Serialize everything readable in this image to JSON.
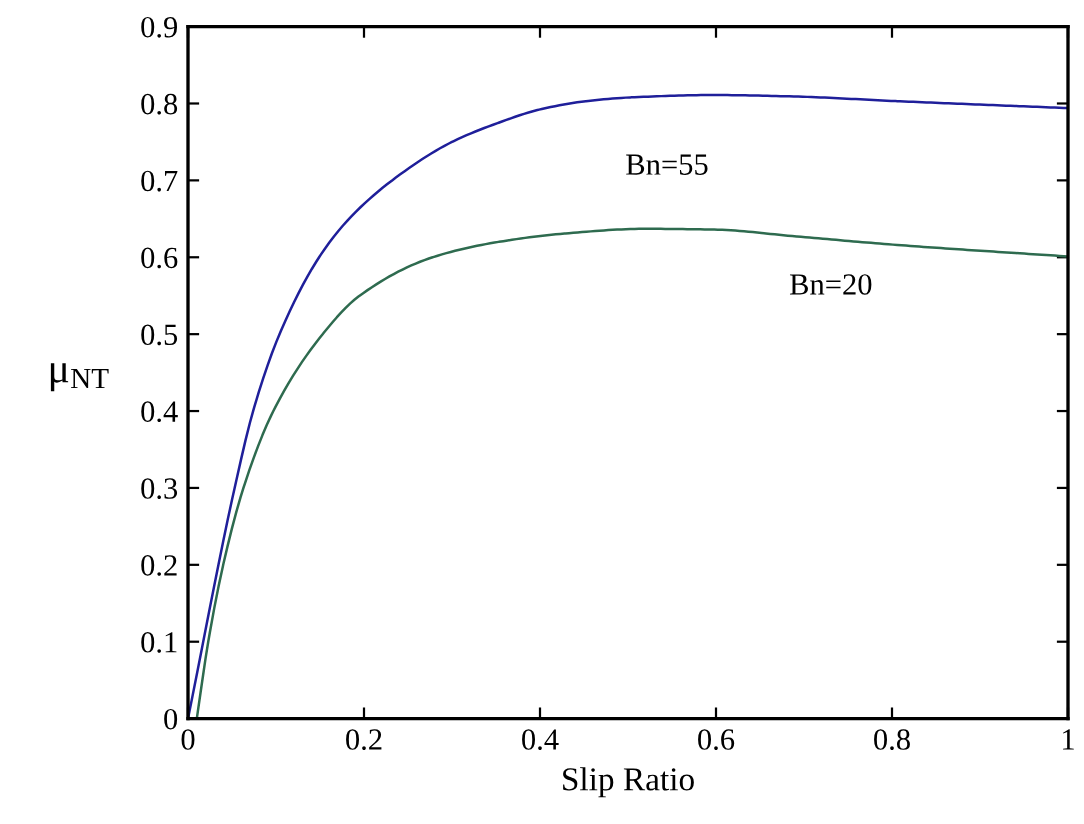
{
  "chart_data": {
    "type": "line",
    "xlabel": "Slip Ratio",
    "ylabel": "μ$_{NT}$",
    "xlim": [
      0,
      1
    ],
    "ylim": [
      0,
      0.9
    ],
    "xticks": [
      0,
      0.2,
      0.4,
      0.6,
      0.8,
      1
    ],
    "yticks": [
      0,
      0.1,
      0.2,
      0.3,
      0.4,
      0.5,
      0.6,
      0.7,
      0.8,
      0.9
    ],
    "grid": false,
    "legend": false,
    "marker": "none",
    "line_style": "solid",
    "series": [
      {
        "name": "Bn=55",
        "color": "#1f1f9a",
        "x": [
          0,
          0.053,
          0.074,
          0.104,
          0.149,
          0.183,
          0.232,
          0.3,
          0.353,
          0.399,
          0.452,
          0.504,
          0.598,
          0.692,
          0.806,
          1.0
        ],
        "values": [
          0,
          0.3,
          0.4,
          0.5,
          0.6,
          0.65,
          0.7,
          0.75,
          0.775,
          0.792,
          0.803,
          0.808,
          0.811,
          0.809,
          0.803,
          0.794
        ]
      },
      {
        "name": "Bn=20",
        "color": "#2e6b4f",
        "x": [
          0.01,
          0.023,
          0.04,
          0.063,
          0.097,
          0.153,
          0.195,
          0.278,
          0.353,
          0.429,
          0.519,
          0.598,
          0.692,
          0.806,
          1.0
        ],
        "values": [
          0,
          0.1,
          0.2,
          0.3,
          0.4,
          0.5,
          0.55,
          0.6,
          0.62,
          0.631,
          0.637,
          0.636,
          0.627,
          0.616,
          0.601
        ]
      }
    ]
  }
}
